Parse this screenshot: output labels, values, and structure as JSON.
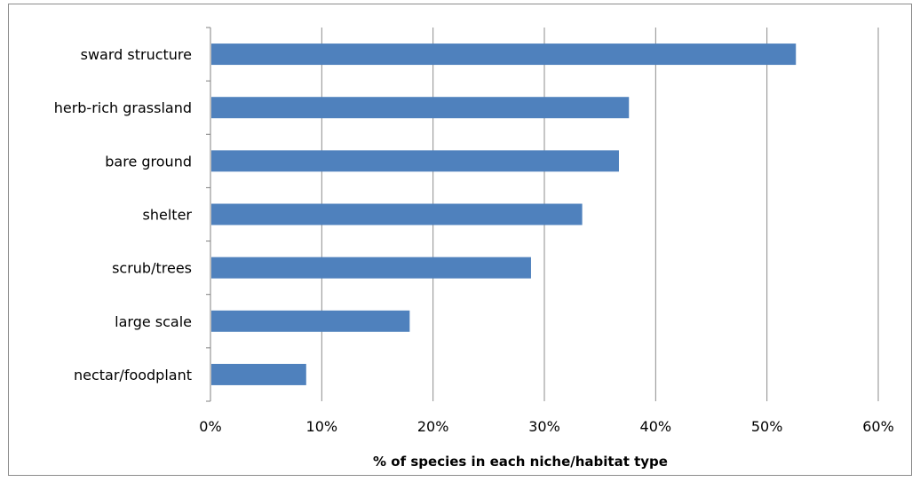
{
  "chart_data": {
    "type": "bar",
    "orientation": "horizontal",
    "categories": [
      "sward structure",
      "herb-rich grassland",
      "bare ground",
      "shelter",
      "scrub/trees",
      "large scale",
      "nectar/foodplant"
    ],
    "values": [
      52.6,
      37.6,
      36.7,
      33.4,
      28.8,
      17.9,
      8.6
    ],
    "title": "",
    "xlabel": "% of species in  each niche/habitat type",
    "ylabel": "",
    "xlim": [
      0,
      60
    ],
    "x_ticks": [
      "0%",
      "10%",
      "20%",
      "30%",
      "40%",
      "50%",
      "60%"
    ],
    "grid": "vertical",
    "legend": "none",
    "bar_color": "#4f81bd"
  }
}
